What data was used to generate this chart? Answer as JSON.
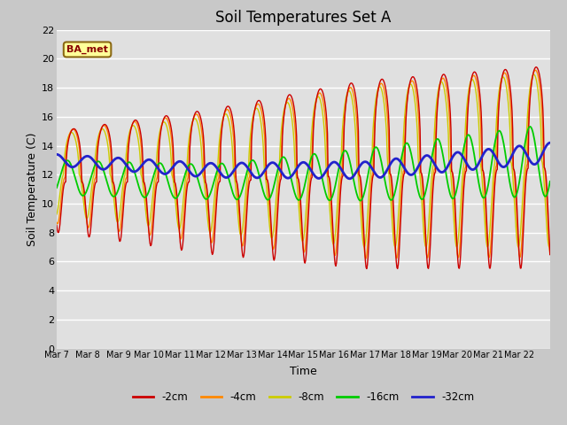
{
  "title": "Soil Temperatures Set A",
  "xlabel": "Time",
  "ylabel": "Soil Temperature (C)",
  "ylim": [
    0,
    22
  ],
  "yticks": [
    0,
    2,
    4,
    6,
    8,
    10,
    12,
    14,
    16,
    18,
    20,
    22
  ],
  "x_labels": [
    "Mar 7",
    "Mar 8",
    "Mar 9",
    "Mar 10",
    "Mar 11",
    "Mar 12",
    "Mar 13",
    "Mar 14",
    "Mar 15",
    "Mar 16",
    "Mar 17",
    "Mar 18",
    "Mar 19",
    "Mar 20",
    "Mar 21",
    "Mar 22"
  ],
  "annotation_text": "BA_met",
  "line_colors": [
    "#cc0000",
    "#ff8800",
    "#cccc00",
    "#00cc00",
    "#2222cc"
  ],
  "line_labels": [
    "-2cm",
    "-4cm",
    "-8cm",
    "-16cm",
    "-32cm"
  ],
  "fig_bg_color": "#c8c8c8",
  "plot_bg_color": "#e0e0e0",
  "grid_color": "#ffffff",
  "title_fontsize": 12,
  "lw_shallow": 1.0,
  "lw_mid": 1.2,
  "lw_deep": 2.0
}
